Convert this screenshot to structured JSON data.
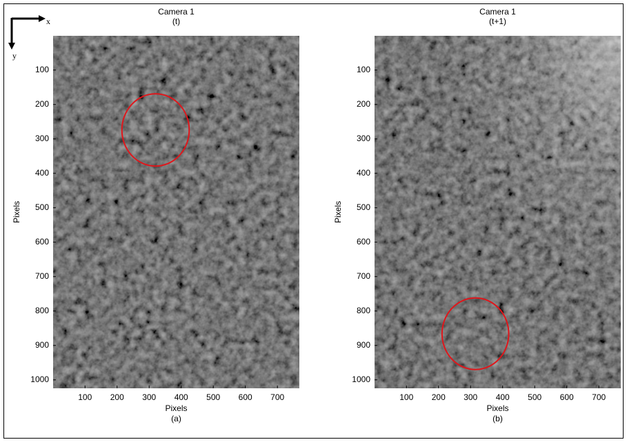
{
  "orientation_labels": [
    "x",
    "y"
  ],
  "chart_data": [
    {
      "type": "image",
      "title": "Camera 1",
      "subtitle": "(t)",
      "xlabel": "Pixels",
      "ylabel": "Pixels",
      "caption": "(a)",
      "xlim": [
        0.5,
        768.5
      ],
      "ylim": [
        0.5,
        1024.5
      ],
      "xticks": [
        100,
        200,
        300,
        400,
        500,
        600,
        700
      ],
      "yticks": [
        100,
        200,
        300,
        400,
        500,
        600,
        700,
        800,
        900,
        1000
      ],
      "annotations": [
        {
          "x": 320,
          "y": 274,
          "r": 105,
          "color": "#e0161b"
        }
      ]
    },
    {
      "type": "image",
      "title": "Camera 1",
      "subtitle": "(t+1)",
      "xlabel": "Pixels",
      "ylabel": "Pixels",
      "caption": "(b)",
      "xlim": [
        0.5,
        768.5
      ],
      "ylim": [
        0.5,
        1024.5
      ],
      "xticks": [
        100,
        200,
        300,
        400,
        500,
        600,
        700
      ],
      "yticks": [
        100,
        200,
        300,
        400,
        500,
        600,
        700,
        800,
        900,
        1000
      ],
      "annotations": [
        {
          "x": 315,
          "y": 866,
          "r": 104,
          "color": "#e0161b"
        }
      ]
    }
  ]
}
